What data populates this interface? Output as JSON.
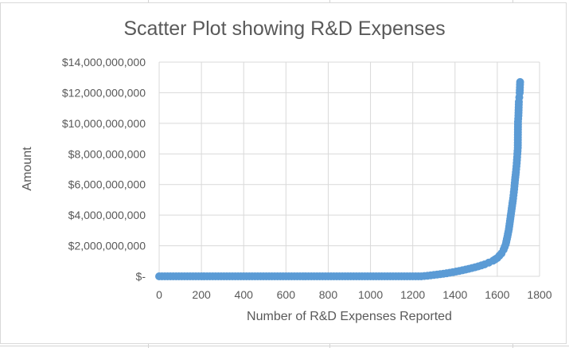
{
  "chart_data": {
    "type": "scatter",
    "title": "Scatter Plot showing R&D Expenses",
    "xlabel": "Number of R&D Expenses Reported",
    "ylabel": "Amount",
    "xlim": [
      0,
      1800
    ],
    "ylim": [
      0,
      14000000000
    ],
    "x_ticks": [
      0,
      200,
      400,
      600,
      800,
      1000,
      1200,
      1400,
      1600,
      1800
    ],
    "y_ticks": [
      0,
      2000000000,
      4000000000,
      6000000000,
      8000000000,
      10000000000,
      12000000000,
      14000000000
    ],
    "y_tick_labels": [
      "$-",
      "$2,000,000,000",
      "$4,000,000,000",
      "$6,000,000,000",
      "$8,000,000,000",
      "$10,000,000,000",
      "$12,000,000,000",
      "$14,000,000,000"
    ],
    "grid": true,
    "legend": "none",
    "marker_color": "#5b9bd5",
    "series": [
      {
        "points": [
          [
            0,
            0
          ],
          [
            40,
            0
          ],
          [
            80,
            0
          ],
          [
            120,
            0
          ],
          [
            160,
            0
          ],
          [
            200,
            0
          ],
          [
            240,
            0
          ],
          [
            280,
            0
          ],
          [
            320,
            0
          ],
          [
            360,
            0
          ],
          [
            400,
            0
          ],
          [
            440,
            0
          ],
          [
            480,
            0
          ],
          [
            520,
            0
          ],
          [
            560,
            0
          ],
          [
            600,
            0
          ],
          [
            640,
            0
          ],
          [
            680,
            0
          ],
          [
            720,
            0
          ],
          [
            760,
            0
          ],
          [
            800,
            0
          ],
          [
            840,
            0
          ],
          [
            880,
            0
          ],
          [
            920,
            0
          ],
          [
            960,
            0
          ],
          [
            1000,
            0
          ],
          [
            1040,
            0
          ],
          [
            1080,
            0
          ],
          [
            1120,
            0
          ],
          [
            1160,
            0
          ],
          [
            1200,
            0
          ],
          [
            1240,
            0
          ],
          [
            1270,
            40000000
          ],
          [
            1300,
            90000000
          ],
          [
            1330,
            140000000
          ],
          [
            1360,
            200000000
          ],
          [
            1390,
            270000000
          ],
          [
            1420,
            350000000
          ],
          [
            1450,
            440000000
          ],
          [
            1480,
            540000000
          ],
          [
            1510,
            650000000
          ],
          [
            1540,
            780000000
          ],
          [
            1560,
            900000000
          ],
          [
            1580,
            1020000000
          ],
          [
            1600,
            1200000000
          ],
          [
            1610,
            1350000000
          ],
          [
            1620,
            1500000000
          ],
          [
            1630,
            1750000000
          ],
          [
            1640,
            2100000000
          ],
          [
            1648,
            2600000000
          ],
          [
            1655,
            3100000000
          ],
          [
            1660,
            3600000000
          ],
          [
            1665,
            4100000000
          ],
          [
            1670,
            4600000000
          ],
          [
            1675,
            5100000000
          ],
          [
            1680,
            5700000000
          ],
          [
            1684,
            6300000000
          ],
          [
            1688,
            6800000000
          ],
          [
            1692,
            7400000000
          ],
          [
            1695,
            8000000000
          ],
          [
            1697,
            8400000000
          ],
          [
            1698,
            10100000000
          ],
          [
            1700,
            10500000000
          ],
          [
            1702,
            11400000000
          ],
          [
            1704,
            11700000000
          ],
          [
            1706,
            12000000000
          ],
          [
            1708,
            12700000000
          ]
        ]
      }
    ]
  }
}
